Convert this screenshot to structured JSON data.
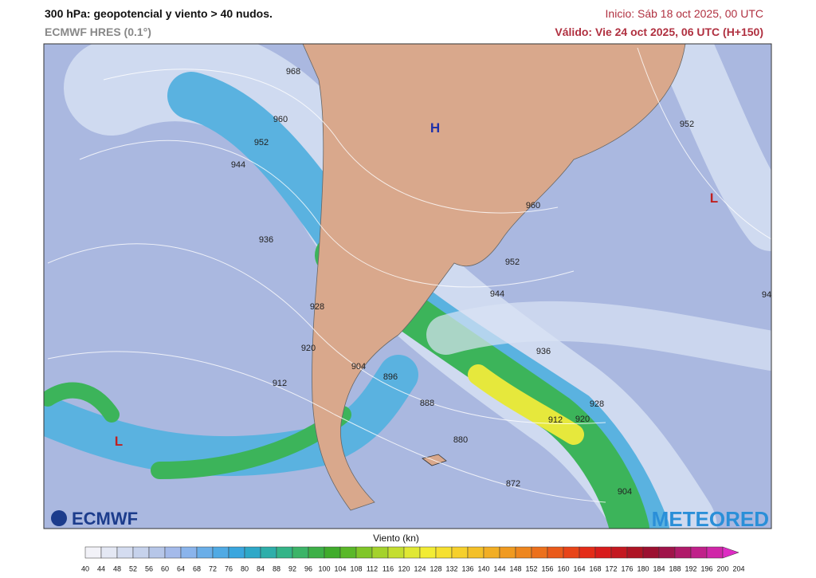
{
  "header": {
    "title": "300 hPa: geopotencial y viento > 40 nudos.",
    "model": "ECMWF HRES (0.1°)",
    "init": "Inicio: Sáb 18 oct 2025, 00 UTC",
    "valid": "Válido: Vie 24 oct 2025, 06 UTC (H+150)"
  },
  "map": {
    "contour_labels": [
      "968",
      "960",
      "952",
      "944",
      "936",
      "928",
      "920",
      "912",
      "904",
      "896",
      "888",
      "880",
      "872",
      "904",
      "912",
      "920",
      "928",
      "936",
      "944",
      "952",
      "960",
      "952",
      "94"
    ],
    "pressure_centers": [
      "H",
      "L",
      "L"
    ],
    "logos": [
      "ECMWF",
      "METEORED"
    ]
  },
  "legend": {
    "title": "Viento (kn)",
    "ticks": [
      40,
      44,
      48,
      52,
      56,
      60,
      64,
      68,
      72,
      76,
      80,
      84,
      88,
      92,
      96,
      100,
      104,
      108,
      112,
      116,
      120,
      124,
      128,
      132,
      136,
      140,
      144,
      148,
      152,
      156,
      160,
      164,
      168,
      172,
      176,
      180,
      184,
      188,
      192,
      196,
      200,
      204
    ]
  }
}
